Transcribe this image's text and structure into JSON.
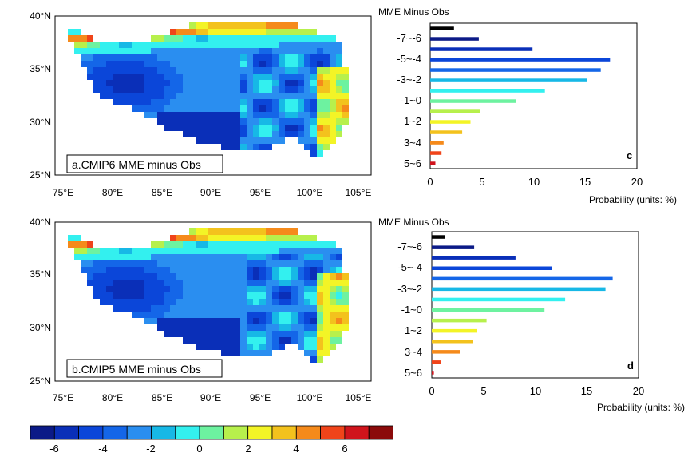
{
  "colorbar": {
    "colors": [
      "#0b1a87",
      "#0a2fb8",
      "#0b46d9",
      "#1466e8",
      "#2a8ef0",
      "#17b8e6",
      "#33f0ef",
      "#6df2a0",
      "#b7f04c",
      "#f3f426",
      "#f3c21d",
      "#f58a1b",
      "#f0441a",
      "#d0141c",
      "#8b0a0a"
    ],
    "labels": [
      "-6",
      "-4",
      "-2",
      "0",
      "2",
      "4",
      "6"
    ]
  },
  "maps": [
    {
      "panel": "a",
      "caption": "a.CMIP6 MME minus Obs",
      "lat_ticks": [
        "40°N",
        "35°N",
        "30°N",
        "25°N"
      ],
      "lon_ticks": [
        "75°E",
        "80°E",
        "85°E",
        "90°E",
        "95°E",
        "100°E",
        "105°E"
      ]
    },
    {
      "panel": "b",
      "caption": "b.CMIP5 MME minus Obs",
      "lat_ticks": [
        "40°N",
        "35°N",
        "30°N",
        "25°N"
      ],
      "lon_ticks": [
        "75°E",
        "80°E",
        "85°E",
        "90°E",
        "95°E",
        "100°E",
        "105°E"
      ]
    }
  ],
  "chart_data": [
    {
      "type": "bar",
      "orientation": "horizontal",
      "panel_label": "c",
      "title": "MME Minus Obs",
      "xlabel": "Probability (units: %)",
      "xlim": [
        0,
        20
      ],
      "xticks": [
        "0",
        "5",
        "10",
        "15",
        "20"
      ],
      "category_labels": [
        "-7~-6",
        "-5~-4",
        "-3~-2",
        "-1~0",
        "1~2",
        "3~4",
        "5~6"
      ],
      "bins": [
        "<-7",
        "-7~-6",
        "-6~-5",
        "-5~-4",
        "-4~-3",
        "-3~-2",
        "-2~-1",
        "-1~0",
        "0~1",
        "1~2",
        "2~3",
        "3~4",
        "4~5",
        "5~6"
      ],
      "values": [
        2.3,
        4.7,
        9.9,
        17.4,
        16.5,
        15.2,
        11.1,
        8.3,
        4.8,
        3.9,
        3.1,
        1.3,
        1.1,
        0.5
      ],
      "colors": [
        "#000000",
        "#0b1a87",
        "#0a2fb8",
        "#0b46d9",
        "#1466e8",
        "#17b8e6",
        "#33f0ef",
        "#6df2a0",
        "#b7f04c",
        "#f3f426",
        "#f3c21d",
        "#f58a1b",
        "#f0441a",
        "#d0141c"
      ]
    },
    {
      "type": "bar",
      "orientation": "horizontal",
      "panel_label": "d",
      "title": "MME Minus Obs",
      "xlabel": "Probability (units: %)",
      "xlim": [
        0,
        20
      ],
      "xticks": [
        "0",
        "5",
        "10",
        "15",
        "20"
      ],
      "category_labels": [
        "-7~-6",
        "-5~-4",
        "-3~-2",
        "-1~0",
        "1~2",
        "3~4",
        "5~6"
      ],
      "bins": [
        "<-7",
        "-7~-6",
        "-6~-5",
        "-5~-4",
        "-4~-3",
        "-3~-2",
        "-2~-1",
        "-1~0",
        "0~1",
        "1~2",
        "2~3",
        "3~4",
        "4~5",
        "5~6"
      ],
      "values": [
        1.3,
        4.1,
        8.1,
        11.6,
        17.5,
        16.8,
        12.9,
        10.9,
        5.3,
        4.4,
        4.0,
        2.7,
        0.9,
        0.2
      ],
      "colors": [
        "#000000",
        "#0b1a87",
        "#0a2fb8",
        "#0b46d9",
        "#1466e8",
        "#17b8e6",
        "#33f0ef",
        "#6df2a0",
        "#b7f04c",
        "#f3f426",
        "#f3c21d",
        "#f58a1b",
        "#f0441a",
        "#d0141c"
      ]
    }
  ]
}
